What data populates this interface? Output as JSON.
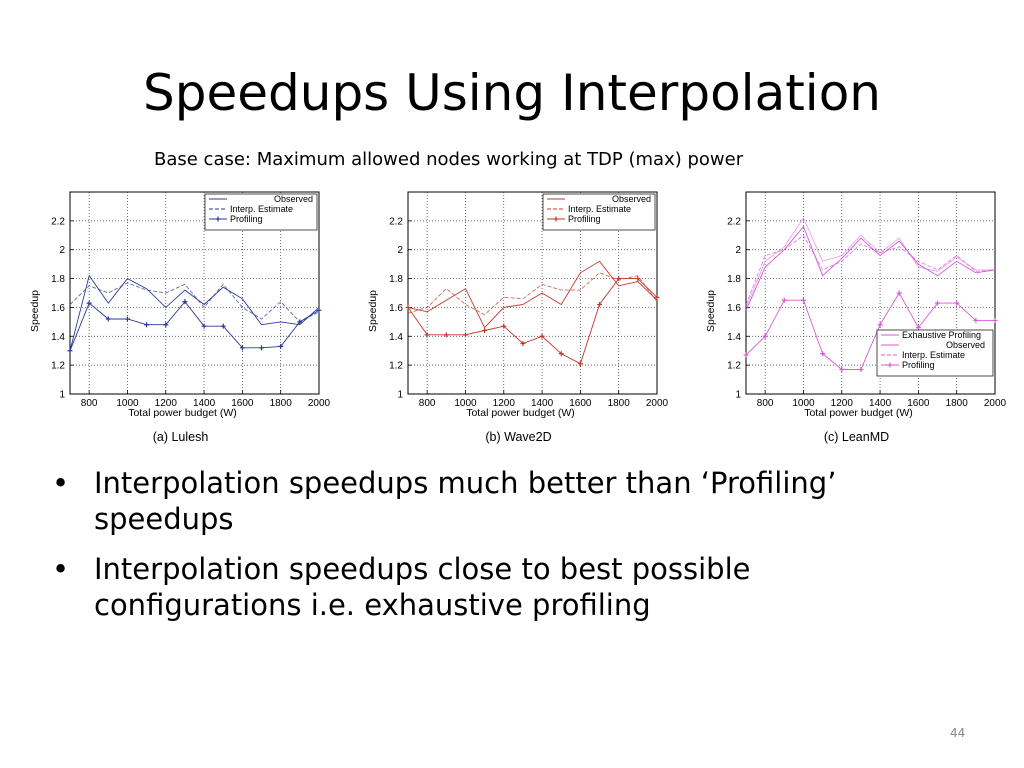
{
  "title": "Speedups Using Interpolation",
  "subtitle": "Base case: Maximum allowed nodes working at TDP (max) power",
  "bullets": [
    "Interpolation speedups much better than ‘Profiling’ speedups",
    "Interpolation speedups close to best possible configurations i.e. exhaustive profiling"
  ],
  "bullet_glyph": "•",
  "page_number": "44",
  "chart_data": [
    {
      "type": "line",
      "caption": "(a) Lulesh",
      "xlabel": "Total power budget (W)",
      "ylabel": "Speedup",
      "xlim": [
        700,
        2000
      ],
      "ylim": [
        1,
        2.4
      ],
      "xticks": [
        800,
        1000,
        1200,
        1400,
        1600,
        1800,
        2000
      ],
      "yticks": [
        1,
        1.2,
        1.4,
        1.6,
        1.8,
        2,
        2.2
      ],
      "grid": true,
      "legend_position": "top-right",
      "color": "#2b3a9a",
      "x": [
        700,
        800,
        900,
        1000,
        1100,
        1200,
        1300,
        1400,
        1500,
        1600,
        1700,
        1800,
        1900,
        2000
      ],
      "series": [
        {
          "name": "Observed",
          "style": "solid",
          "marker": "none",
          "values": [
            1.3,
            1.82,
            1.63,
            1.8,
            1.73,
            1.6,
            1.72,
            1.62,
            1.74,
            1.66,
            1.48,
            1.5,
            1.48,
            1.6
          ]
        },
        {
          "name": "Interp. Estimate",
          "style": "dashed",
          "marker": "none",
          "values": [
            1.62,
            1.75,
            1.7,
            1.77,
            1.72,
            1.7,
            1.76,
            1.6,
            1.76,
            1.6,
            1.52,
            1.64,
            1.5,
            1.57
          ]
        },
        {
          "name": "Profiling",
          "style": "solid",
          "marker": "plus",
          "values": [
            1.3,
            1.63,
            1.52,
            1.52,
            1.48,
            1.48,
            1.64,
            1.47,
            1.47,
            1.32,
            1.32,
            1.33,
            1.5,
            1.58
          ]
        }
      ]
    },
    {
      "type": "line",
      "caption": "(b) Wave2D",
      "xlabel": "Total power budget (W)",
      "ylabel": "Speedup",
      "xlim": [
        700,
        2000
      ],
      "ylim": [
        1,
        2.4
      ],
      "xticks": [
        800,
        1000,
        1200,
        1400,
        1600,
        1800,
        2000
      ],
      "yticks": [
        1,
        1.2,
        1.4,
        1.6,
        1.8,
        2,
        2.2
      ],
      "grid": true,
      "legend_position": "top-right",
      "color": "#c0392b",
      "x": [
        700,
        800,
        900,
        1000,
        1100,
        1200,
        1300,
        1400,
        1500,
        1600,
        1700,
        1800,
        1900,
        2000
      ],
      "series": [
        {
          "name": "Observed",
          "style": "solid",
          "marker": "none",
          "values": [
            1.6,
            1.57,
            1.65,
            1.73,
            1.46,
            1.6,
            1.62,
            1.7,
            1.62,
            1.84,
            1.92,
            1.75,
            1.78,
            1.65
          ]
        },
        {
          "name": "Interp. Estimate",
          "style": "dashed",
          "marker": "none",
          "values": [
            1.56,
            1.6,
            1.73,
            1.62,
            1.55,
            1.67,
            1.66,
            1.76,
            1.72,
            1.72,
            1.84,
            1.79,
            1.82,
            1.64
          ]
        },
        {
          "name": "Profiling",
          "style": "solid",
          "marker": "plus",
          "values": [
            1.6,
            1.41,
            1.41,
            1.41,
            1.44,
            1.47,
            1.35,
            1.4,
            1.28,
            1.21,
            1.62,
            1.8,
            1.8,
            1.67
          ]
        }
      ]
    },
    {
      "type": "line",
      "caption": "(c) LeanMD",
      "xlabel": "Total power budget (W)",
      "ylabel": "Speedup",
      "xlim": [
        700,
        2000
      ],
      "ylim": [
        1,
        2.4
      ],
      "xticks": [
        800,
        1000,
        1200,
        1400,
        1600,
        1800,
        2000
      ],
      "yticks": [
        1,
        1.2,
        1.4,
        1.6,
        1.8,
        2,
        2.2
      ],
      "grid": true,
      "legend_position": "bottom-right",
      "color": "#d65bd6",
      "x": [
        700,
        800,
        900,
        1000,
        1100,
        1200,
        1300,
        1400,
        1500,
        1600,
        1700,
        1800,
        1900,
        2000
      ],
      "series": [
        {
          "name": "Exhaustive Profiling",
          "style": "solid",
          "marker": "none",
          "values": [
            1.6,
            1.92,
            2.02,
            2.22,
            1.92,
            1.96,
            2.1,
            1.98,
            2.08,
            1.88,
            1.85,
            1.95,
            1.86,
            1.86
          ]
        },
        {
          "name": "Observed",
          "style": "solid",
          "marker": "none",
          "values": [
            1.58,
            1.88,
            2.0,
            2.16,
            1.82,
            1.94,
            2.08,
            1.96,
            2.06,
            1.9,
            1.82,
            1.92,
            1.84,
            1.86
          ]
        },
        {
          "name": "Interp. Estimate",
          "style": "dashed",
          "marker": "none",
          "values": [
            1.62,
            1.96,
            2.0,
            2.1,
            1.86,
            1.92,
            2.04,
            1.98,
            2.02,
            1.92,
            1.86,
            1.96,
            1.85,
            1.86
          ]
        },
        {
          "name": "Profiling",
          "style": "solid",
          "marker": "plus",
          "values": [
            1.27,
            1.4,
            1.65,
            1.65,
            1.28,
            1.17,
            1.17,
            1.48,
            1.7,
            1.46,
            1.63,
            1.63,
            1.51,
            1.51
          ]
        }
      ]
    }
  ]
}
